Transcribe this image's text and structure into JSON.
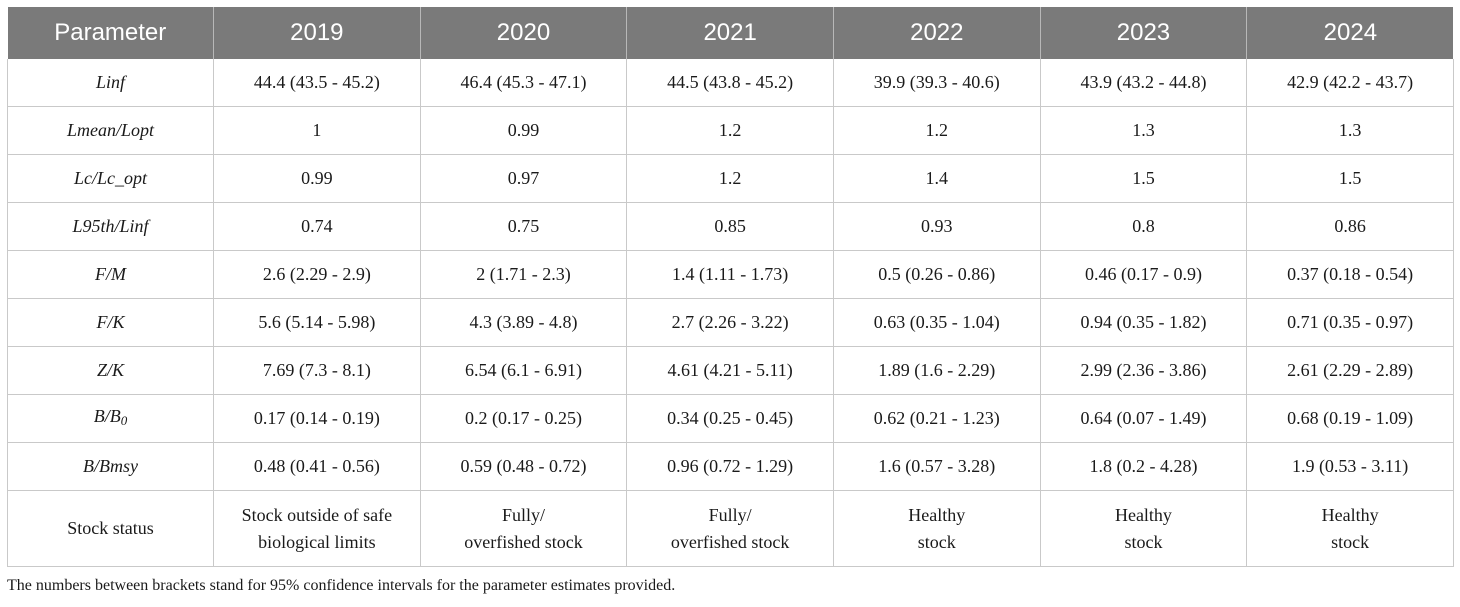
{
  "table": {
    "headers": [
      "Parameter",
      "2019",
      "2020",
      "2021",
      "2022",
      "2023",
      "2024"
    ],
    "rows": [
      {
        "parameter": "Linf",
        "values": [
          "44.4 (43.5 - 45.2)",
          "46.4 (45.3 - 47.1)",
          "44.5 (43.8 - 45.2)",
          "39.9 (39.3 - 40.6)",
          "43.9  (43.2 - 44.8)",
          "42.9 (42.2 - 43.7)"
        ]
      },
      {
        "parameter": "Lmean/Lopt",
        "values": [
          "1",
          "0.99",
          "1.2",
          "1.2",
          "1.3",
          "1.3"
        ]
      },
      {
        "parameter": "Lc/Lc_opt",
        "values": [
          "0.99",
          "0.97",
          "1.2",
          "1.4",
          "1.5",
          "1.5"
        ]
      },
      {
        "parameter": "L95th/Linf",
        "values": [
          "0.74",
          "0.75",
          "0.85",
          "0.93",
          "0.8",
          "0.86"
        ]
      },
      {
        "parameter": "F/M",
        "values": [
          "2.6 (2.29 - 2.9)",
          "2 (1.71 - 2.3)",
          "1.4 (1.11 - 1.73)",
          "0.5 (0.26 - 0.86)",
          "0.46 (0.17 - 0.9)",
          "0.37 (0.18 - 0.54)"
        ]
      },
      {
        "parameter": "F/K",
        "values": [
          "5.6 (5.14 - 5.98)",
          "4.3 (3.89 - 4.8)",
          "2.7 (2.26 - 3.22)",
          "0.63 (0.35 - 1.04)",
          "0.94 (0.35 - 1.82)",
          "0.71 (0.35 - 0.97)"
        ]
      },
      {
        "parameter": "Z/K",
        "values": [
          "7.69 (7.3 - 8.1)",
          "6.54 (6.1 - 6.91)",
          "4.61 (4.21 - 5.11)",
          "1.89 (1.6 - 2.29)",
          "2.99 (2.36 - 3.86)",
          "2.61 (2.29 - 2.89)"
        ]
      },
      {
        "parameter": "B/B",
        "parameter_sub": "0",
        "values": [
          "0.17 (0.14 - 0.19)",
          "0.2 (0.17 - 0.25)",
          "0.34 (0.25 - 0.45)",
          "0.62 (0.21 - 1.23)",
          "0.64 (0.07 - 1.49)",
          "0.68 (0.19 - 1.09)"
        ]
      },
      {
        "parameter": "B/Bmsy",
        "values": [
          "0.48 (0.41 - 0.56)",
          "0.59 (0.48 - 0.72)",
          "0.96 (0.72 - 1.29)",
          "1.6 (0.57 - 3.28)",
          "1.8 (0.2 - 4.28)",
          "1.9 (0.53 - 3.11)"
        ]
      }
    ],
    "status_row": {
      "parameter": "Stock status",
      "values": [
        [
          "Stock outside of safe",
          "biological limits"
        ],
        [
          "Fully/",
          "overfished stock"
        ],
        [
          "Fully/",
          "overfished stock"
        ],
        [
          "Healthy",
          "stock"
        ],
        [
          "Healthy",
          "stock"
        ],
        [
          "Healthy",
          "stock"
        ]
      ]
    }
  },
  "footnote": "The numbers between brackets stand for 95% confidence intervals for the parameter estimates provided."
}
